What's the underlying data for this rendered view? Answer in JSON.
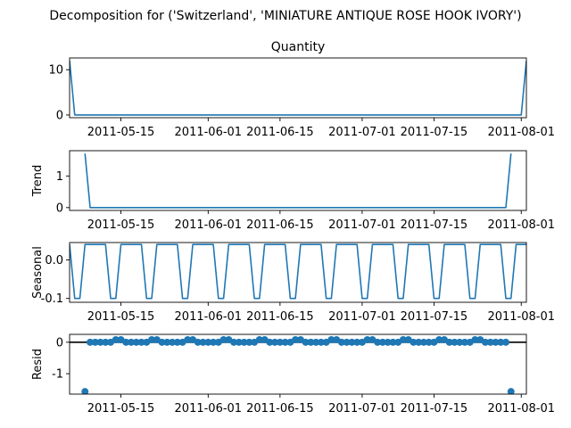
{
  "suptitle": "Decomposition for ('Switzerland', 'MINIATURE ANTIQUE ROSE HOOK IVORY')",
  "colors": {
    "line": "#1f77b4",
    "zero_line": "#000000"
  },
  "chart_data": [
    {
      "type": "line",
      "title": "Quantity",
      "ylabel": "",
      "x_range": [
        "2011-05-05",
        "2011-08-02"
      ],
      "ylim": [
        -0.6,
        12.6
      ],
      "yticks": [
        0,
        10
      ],
      "xticks": [
        "2011-05-15",
        "2011-06-01",
        "2011-06-15",
        "2011-07-01",
        "2011-07-15",
        "2011-08-01"
      ],
      "series": [
        {
          "points": [
            [
              "2011-05-05",
              12
            ],
            [
              "2011-05-06",
              0
            ],
            [
              "2011-08-01",
              0
            ],
            [
              "2011-08-02",
              12
            ]
          ]
        }
      ]
    },
    {
      "type": "line",
      "title": "",
      "ylabel": "Trend",
      "x_range": [
        "2011-05-05",
        "2011-08-02"
      ],
      "ylim": [
        -0.09,
        1.8
      ],
      "yticks": [
        0,
        1
      ],
      "xticks": [
        "2011-05-15",
        "2011-06-01",
        "2011-06-15",
        "2011-07-01",
        "2011-07-15",
        "2011-08-01"
      ],
      "series": [
        {
          "points": [
            [
              "2011-05-08",
              1.71
            ],
            [
              "2011-05-09",
              0
            ],
            [
              "2011-07-29",
              0
            ],
            [
              "2011-07-30",
              1.71
            ]
          ]
        }
      ]
    },
    {
      "type": "line",
      "title": "",
      "ylabel": "Seasonal",
      "x_range": [
        "2011-05-05",
        "2011-08-02"
      ],
      "ylim": [
        -0.11,
        0.045
      ],
      "yticks": [
        0.0,
        -0.1
      ],
      "xticks": [
        "2011-05-15",
        "2011-06-01",
        "2011-06-15",
        "2011-07-01",
        "2011-07-15",
        "2011-08-01"
      ],
      "pattern": {
        "start": "2011-05-05",
        "end": "2011-08-02",
        "period": 7,
        "values": [
          0.04,
          -0.1,
          -0.1,
          0.04,
          0.04,
          0.04,
          0.04
        ]
      }
    },
    {
      "type": "scatter",
      "title": "",
      "ylabel": "Resid",
      "x_range": [
        "2011-05-05",
        "2011-08-02"
      ],
      "ylim": [
        -1.65,
        0.25
      ],
      "yticks": [
        0,
        -1
      ],
      "xticks": [
        "2011-05-15",
        "2011-06-01",
        "2011-06-15",
        "2011-07-01",
        "2011-07-15",
        "2011-08-01"
      ],
      "zero_line": true,
      "outliers": [
        [
          "2011-05-08",
          -1.57
        ],
        [
          "2011-07-30",
          -1.57
        ]
      ],
      "pattern": {
        "start": "2011-05-09",
        "end": "2011-07-29",
        "period": 7,
        "values": [
          0,
          0,
          0,
          0,
          0,
          0.08,
          0.08
        ]
      }
    }
  ]
}
